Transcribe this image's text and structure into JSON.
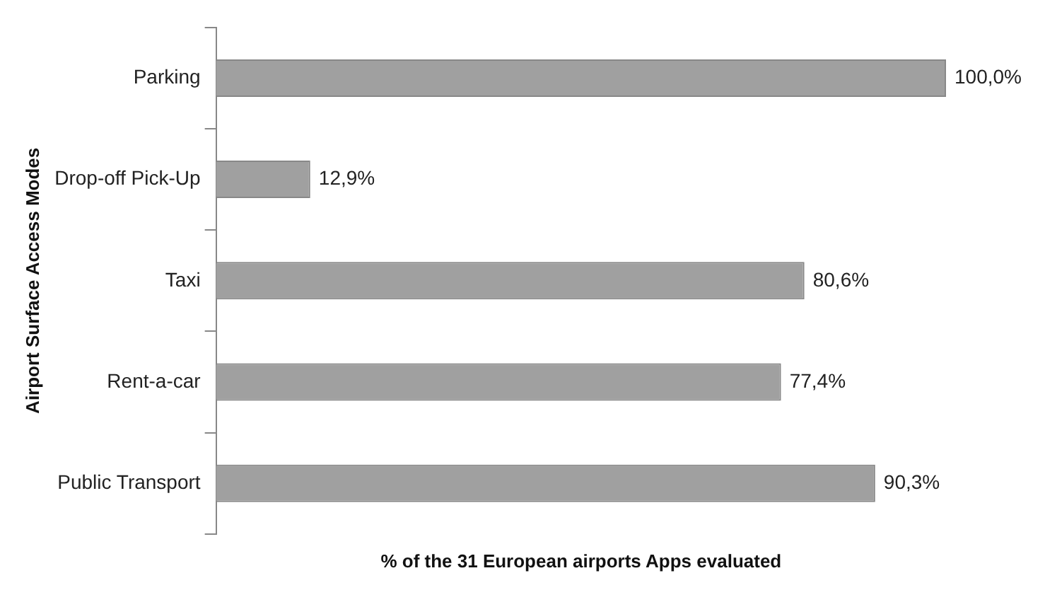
{
  "chart_data": {
    "type": "bar",
    "orientation": "horizontal",
    "xlabel": "% of the 31 European airports Apps evaluated",
    "ylabel": "Airport Surface Access Modes",
    "categories": [
      "Parking",
      "Drop-off Pick-Up",
      "Taxi",
      "Rent-a-car",
      "Public Transport"
    ],
    "values": [
      100,
      12.9,
      80.6,
      77.4,
      90.3
    ],
    "value_labels": [
      "100,0%",
      "12,9%",
      "80,6%",
      "77,4%",
      "90,3%"
    ],
    "color": "#a0a0a0",
    "tick_labels": "y"
  }
}
